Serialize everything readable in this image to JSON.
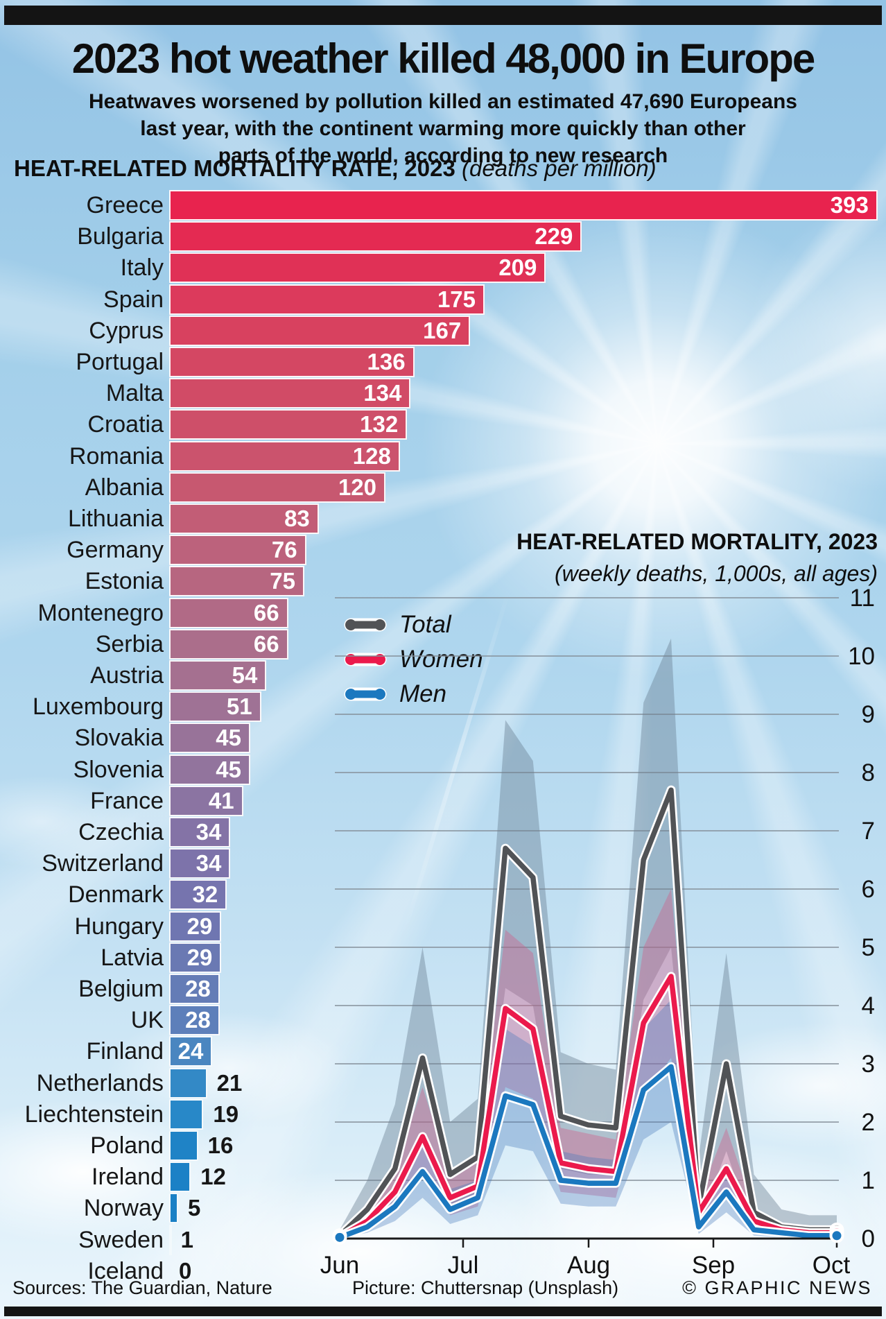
{
  "header": {
    "title": "2023 hot weather killed 48,000 in Europe",
    "subtitle_lines": [
      "Heatwaves worsened by pollution killed an estimated 47,690 Europeans",
      "last year, with the continent warming more quickly than other",
      "parts of the world, according to new research"
    ]
  },
  "footer": {
    "sources": "Sources: The Guardian, Nature",
    "picture": "Picture: Chuttersnap (Unsplash)",
    "credit": "© GRAPHIC NEWS"
  },
  "colors": {
    "total_line": "#515356",
    "women_line": "#EB1A4C",
    "men_line": "#1B78BF",
    "total_band": "rgba(104,126,146,0.42)",
    "women_band": "rgba(210,90,135,0.38)",
    "men_band": "rgba(70,120,185,0.35)",
    "gridline": "#85909A",
    "axis": "#1a1a1a"
  },
  "chart_data": [
    {
      "type": "bar",
      "title": "HEAT-RELATED MORTALITY RATE, 2023",
      "subtitle": "(deaths per million)",
      "xlim": [
        0,
        393
      ],
      "categories": [
        "Greece",
        "Bulgaria",
        "Italy",
        "Spain",
        "Cyprus",
        "Portugal",
        "Malta",
        "Croatia",
        "Romania",
        "Albania",
        "Lithuania",
        "Germany",
        "Estonia",
        "Montenegro",
        "Serbia",
        "Austria",
        "Luxembourg",
        "Slovakia",
        "Slovenia",
        "France",
        "Czechia",
        "Switzerland",
        "Denmark",
        "Hungary",
        "Latvia",
        "Belgium",
        "UK",
        "Finland",
        "Netherlands",
        "Liechtenstein",
        "Poland",
        "Ireland",
        "Norway",
        "Sweden",
        "Iceland"
      ],
      "values": [
        393,
        229,
        209,
        175,
        167,
        136,
        134,
        132,
        128,
        120,
        83,
        76,
        75,
        66,
        66,
        54,
        51,
        45,
        45,
        41,
        34,
        34,
        32,
        29,
        29,
        28,
        28,
        24,
        21,
        19,
        16,
        12,
        5,
        1,
        0
      ],
      "colors": [
        "#E8234E",
        "#E42A52",
        "#E03156",
        "#DC3A5C",
        "#D8415F",
        "#D44763",
        "#D14B66",
        "#CE4F69",
        "#CB536D",
        "#C75870",
        "#C25D76",
        "#BC627C",
        "#B76680",
        "#B16A86",
        "#AB6E8B",
        "#A57090",
        "#9F7295",
        "#987399",
        "#92749D",
        "#8B74A2",
        "#8473A6",
        "#7D73AA",
        "#7674AE",
        "#6F76B1",
        "#6A79B3",
        "#647CB6",
        "#5D7FBA",
        "#4A86C0",
        "#3389C6",
        "#2888C8",
        "#1F83C6",
        "#1B81C6",
        "#1A80C5",
        "#1980C5",
        "#1980C5"
      ]
    },
    {
      "type": "line",
      "title": "HEAT-RELATED MORTALITY, 2023",
      "subtitle": "(weekly deaths, 1,000s, all ages)",
      "x_tick_labels": [
        "Jun",
        "Jul",
        "Aug",
        "Sep",
        "Oct"
      ],
      "ylim": [
        0,
        11
      ],
      "yticks": [
        11,
        10,
        9,
        8,
        7,
        6,
        5,
        4,
        3,
        2,
        1,
        0
      ],
      "grid": true,
      "legend_position": "upper-left",
      "weeks": [
        "Jun 1",
        "Jun 8",
        "Jun 15",
        "Jun 22",
        "Jun 29",
        "Jul 6",
        "Jul 13",
        "Jul 20",
        "Jul 27",
        "Aug 3",
        "Aug 10",
        "Aug 17",
        "Aug 24",
        "Aug 31",
        "Sep 7",
        "Sep 14",
        "Sep 21",
        "Sep 28",
        "Oct 1"
      ],
      "series": [
        {
          "name": "Total",
          "values": [
            0.05,
            0.5,
            1.2,
            3.1,
            1.1,
            1.4,
            6.7,
            6.2,
            2.1,
            1.95,
            1.9,
            6.5,
            7.7,
            0.55,
            3.0,
            0.45,
            0.2,
            0.15,
            0.15
          ]
        },
        {
          "name": "Women",
          "values": [
            0.03,
            0.3,
            0.8,
            1.75,
            0.7,
            0.9,
            3.95,
            3.6,
            1.3,
            1.2,
            1.15,
            3.7,
            4.5,
            0.45,
            1.2,
            0.3,
            0.15,
            0.1,
            0.1
          ]
        },
        {
          "name": "Men",
          "values": [
            0.02,
            0.2,
            0.55,
            1.15,
            0.5,
            0.7,
            2.45,
            2.3,
            1.0,
            0.95,
            0.95,
            2.55,
            2.95,
            0.2,
            0.8,
            0.15,
            0.1,
            0.05,
            0.05
          ]
        }
      ],
      "confidence_bands": [
        {
          "series": "Total",
          "upper": [
            0.15,
            1.0,
            2.3,
            5.0,
            2.0,
            2.4,
            8.9,
            8.2,
            3.2,
            3.0,
            2.9,
            9.2,
            10.3,
            1.4,
            4.9,
            1.1,
            0.5,
            0.4,
            0.4
          ],
          "lower": [
            0,
            0.2,
            0.6,
            1.7,
            0.6,
            0.7,
            4.3,
            4.0,
            1.2,
            1.1,
            1.1,
            4.1,
            5.0,
            0.2,
            1.5,
            0.1,
            0.05,
            0.03,
            0.03
          ]
        },
        {
          "series": "Women",
          "upper": [
            0.06,
            0.5,
            1.2,
            2.6,
            1.1,
            1.3,
            5.3,
            4.9,
            1.9,
            1.8,
            1.7,
            5.0,
            6.0,
            0.7,
            1.9,
            0.5,
            0.25,
            0.2,
            0.2
          ],
          "lower": [
            0,
            0.15,
            0.45,
            1.1,
            0.4,
            0.55,
            2.6,
            2.4,
            0.8,
            0.75,
            0.7,
            2.5,
            3.1,
            0.2,
            0.7,
            0.1,
            0.05,
            0.03,
            0.03
          ]
        },
        {
          "series": "Men",
          "upper": [
            0.04,
            0.35,
            0.9,
            1.8,
            0.85,
            1.0,
            3.6,
            3.3,
            1.5,
            1.4,
            1.35,
            3.6,
            4.1,
            0.5,
            1.3,
            0.35,
            0.2,
            0.15,
            0.15
          ],
          "lower": [
            0,
            0.1,
            0.3,
            0.7,
            0.25,
            0.4,
            1.6,
            1.5,
            0.6,
            0.55,
            0.55,
            1.7,
            2.0,
            0.08,
            0.45,
            0.05,
            0.02,
            0.01,
            0.01
          ]
        }
      ]
    }
  ]
}
